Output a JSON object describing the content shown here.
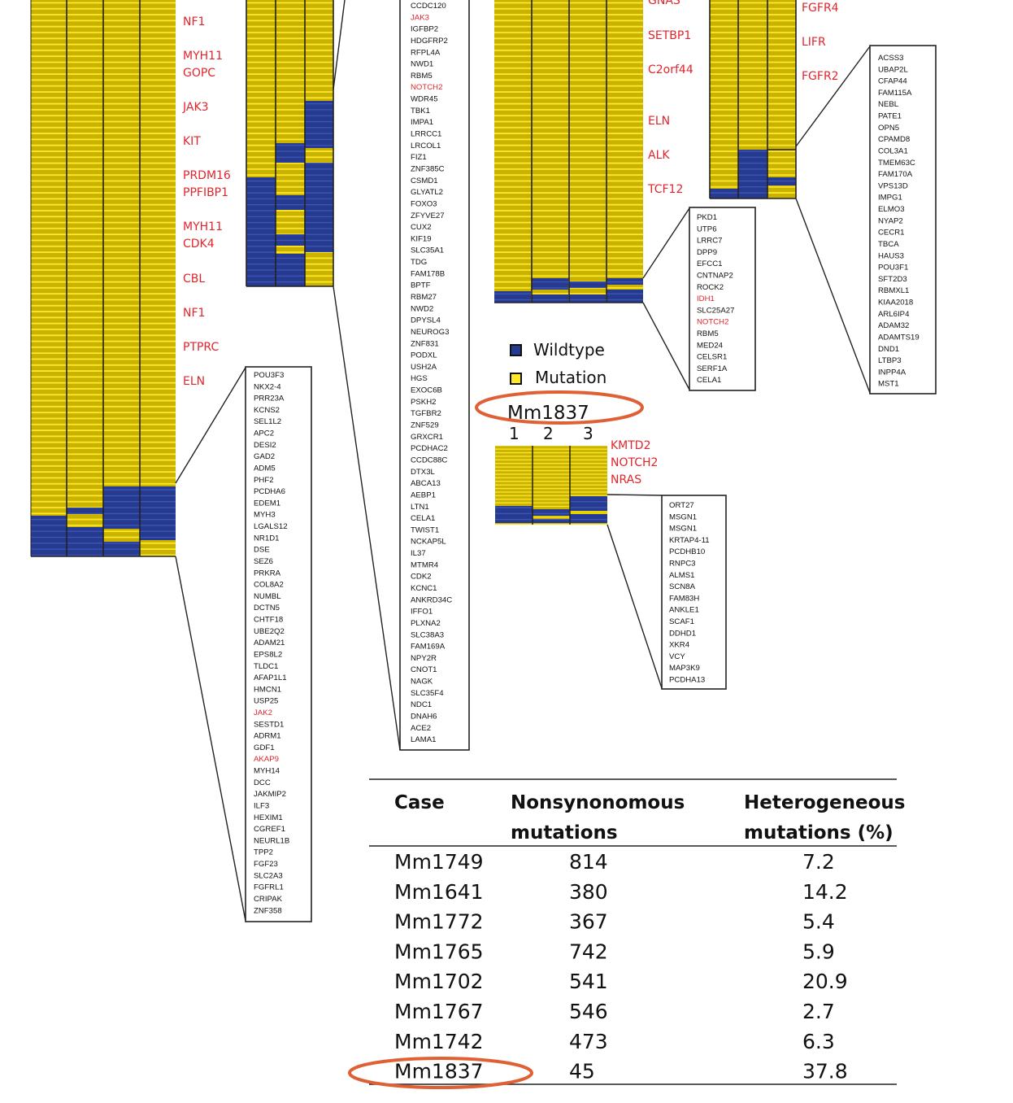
{
  "colors": {
    "mutation": "#cdb700",
    "mutation_stripe": "#ffe82a",
    "wildtype": "#2a3e95",
    "wildtype_stripe": "#4058b8",
    "highlight": "#e06035",
    "gene_red": "#e0252c"
  },
  "heatmap_a": {
    "genes": [
      "NF1",
      "MYH11",
      "GOPC",
      "JAK3",
      "KIT",
      "PRDM16",
      "PPFIBP1",
      "MYH11",
      "CDK4",
      "CBL",
      "NF1",
      "PTPRC",
      "ELN"
    ]
  },
  "heatmap_c": {
    "genes": [
      "GNAS",
      "SETBP1",
      "C2orf44",
      "ELN",
      "ALK",
      "TCF12"
    ]
  },
  "heatmap_d": {
    "genes": [
      "FGFR4",
      "LIFR",
      "FGFR2"
    ]
  },
  "heatmap_e": {
    "genes": [
      "KMTD2",
      "NOTCH2",
      "NRAS"
    ],
    "sample": "Mm1837",
    "columns": [
      "1",
      "2",
      "3"
    ]
  },
  "legend": {
    "wildtype": "Wildtype",
    "mutation": "Mutation"
  },
  "list_a": [
    "POU3F3",
    "NKX2-4",
    "PRR23A",
    "KCNS2",
    "SEL1L2",
    "APC2",
    "DESI2",
    "GAD2",
    "ADM5",
    "PHF2",
    "PCDHA6",
    "EDEM1",
    "MYH3",
    "LGALS12",
    "NR1D1",
    "DSE",
    "SEZ6",
    "PRKRA",
    "COL8A2",
    "NUMBL",
    "DCTN5",
    "CHTF18",
    "UBE2Q2",
    "ADAM21",
    "EPS8L2",
    "TLDC1",
    "AFAP1L1",
    "HMCN1",
    "USP25",
    "JAK2",
    "SESTD1",
    "ADRM1",
    "GDF1",
    "AKAP9",
    "MYH14",
    "DCC",
    "JAKMIP2",
    "ILF3",
    "HEXIM1",
    "CGREF1",
    "NEURL1B",
    "TPP2",
    "FGF23",
    "SLC2A3",
    "FGFRL1",
    "CRIPAK",
    "ZNF358"
  ],
  "list_a_red": [
    "JAK2",
    "AKAP9"
  ],
  "list_b": [
    "CCDC120",
    "JAK3",
    "IGFBP2",
    "HDGFRP2",
    "RFPL4A",
    "NWD1",
    "RBM5",
    "NOTCH2",
    "WDR45",
    "TBK1",
    "IMPA1",
    "LRRCC1",
    "LRCOL1",
    "FIZ1",
    "ZNF385C",
    "CSMD1",
    "GLYATL2",
    "FOXO3",
    "ZFYVE27",
    "CUX2",
    "KIF19",
    "SLC35A1",
    "TDG",
    "FAM178B",
    "BPTF",
    "RBM27",
    "NWD2",
    "DPYSL4",
    "NEUROG3",
    "ZNF831",
    "PODXL",
    "USH2A",
    "HGS",
    "EXOC6B",
    "PSKH2",
    "TGFBR2",
    "ZNF529",
    "GRXCR1",
    "PCDHAC2",
    "CCDC88C",
    "DTX3L",
    "ABCA13",
    "AEBP1",
    "LTN1",
    "CELA1",
    "TWIST1",
    "NCKAP5L",
    "IL37",
    "MTMR4",
    "CDK2",
    "KCNC1",
    "ANKRD34C",
    "IFFO1",
    "PLXNA2",
    "SLC38A3",
    "FAM169A",
    "NPY2R",
    "CNOT1",
    "NAGK",
    "SLC35F4",
    "NDC1",
    "DNAH6",
    "ACE2",
    "LAMA1"
  ],
  "list_b_red": [
    "JAK3",
    "NOTCH2"
  ],
  "list_c": [
    "PKD1",
    "UTP6",
    "LRRC7",
    "DPP9",
    "EFCC1",
    "CNTNAP2",
    "ROCK2",
    "IDH1",
    "SLC25A27",
    "NOTCH2",
    "RBM5",
    "MED24",
    "CELSR1",
    "SERF1A",
    "CELA1"
  ],
  "list_c_red": [
    "IDH1",
    "NOTCH2"
  ],
  "list_d": [
    "ACSS3",
    "UBAP2L",
    "CFAP44",
    "FAM115A",
    "NEBL",
    "PATE1",
    "OPN5",
    "CPAMD8",
    "COL3A1",
    "TMEM63C",
    "FAM170A",
    "VPS13D",
    "IMPG1",
    "ELMO3",
    "NYAP2",
    "CECR1",
    "TBCA",
    "HAUS3",
    "POU3F1",
    "SFT2D3",
    "RBMXL1",
    "KIAA2018",
    "ARL6IP4",
    "ADAM32",
    "ADAMTS19",
    "DND1",
    "LTBP3",
    "INPP4A",
    "MST1"
  ],
  "list_e": [
    "ORT27",
    "MSGN1",
    "MSGN1",
    "KRTAP4-11",
    "PCDHB10",
    "RNPC3",
    "ALMS1",
    "SCN8A",
    "FAM83H",
    "ANKLE1",
    "SCAF1",
    "DDHD1",
    "XKR4",
    "VCY",
    "MAP3K9",
    "PCDHA13"
  ],
  "table": {
    "headers": [
      [
        "Case"
      ],
      [
        "Nonsynonomous",
        "mutations"
      ],
      [
        "Heterogeneous",
        "mutations (%)"
      ]
    ],
    "rows": [
      [
        "Mm1749",
        "814",
        "7.2"
      ],
      [
        "Mm1641",
        "380",
        "14.2"
      ],
      [
        "Mm1772",
        "367",
        "5.4"
      ],
      [
        "Mm1765",
        "742",
        "5.9"
      ],
      [
        "Mm1702",
        "541",
        "20.9"
      ],
      [
        "Mm1767",
        "546",
        "2.7"
      ],
      [
        "Mm1742",
        "473",
        "6.3"
      ],
      [
        "Mm1837",
        "45",
        "37.8"
      ]
    ]
  }
}
